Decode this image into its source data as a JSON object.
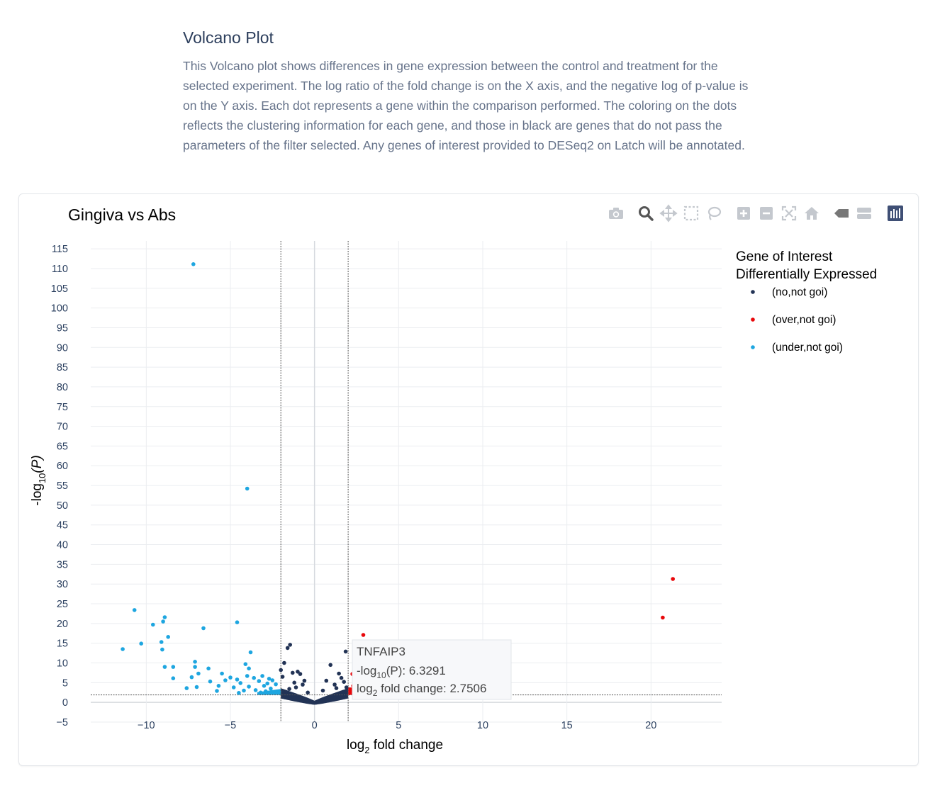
{
  "intro": {
    "title": "Volcano Plot",
    "description": "This Volcano plot shows differences in gene expression between the control and treatment for the selected experiment. The log ratio of the fold change is on the X axis, and the negative log of p-value is on the Y axis. Each dot represents a gene within the comparison performed. The coloring on the dots reflects the clustering information for each gene, and those in black are genes that do not pass the parameters of the filter selected. Any genes of interest provided to DESeq2 on Latch will be annotated."
  },
  "modebar": [
    {
      "name": "camera-icon"
    },
    {
      "name": "zoom-icon"
    },
    {
      "name": "pan-icon"
    },
    {
      "name": "box-select-icon"
    },
    {
      "name": "lasso-select-icon"
    },
    {
      "name": "zoom-in-icon"
    },
    {
      "name": "zoom-out-icon"
    },
    {
      "name": "autoscale-icon"
    },
    {
      "name": "reset-axes-icon"
    },
    {
      "name": "spike-lines-icon"
    },
    {
      "name": "compare-hover-icon"
    },
    {
      "name": "plotly-logo-icon"
    }
  ],
  "chart_data": {
    "type": "scatter",
    "title": "Gingiva vs Abs",
    "xlabel_main": "log",
    "xlabel_sub": "2",
    "xlabel_rest": " fold change",
    "ylabel_main": "-log",
    "ylabel_sub": "10",
    "ylabel_rest": "(P)",
    "xlim": [
      -13.3,
      24.2
    ],
    "ylim": [
      -5,
      117
    ],
    "xticks": [
      -10,
      -5,
      0,
      5,
      10,
      15,
      20
    ],
    "xtick_labels": [
      "−10",
      "−5",
      "0",
      "5",
      "10",
      "15",
      "20"
    ],
    "yticks": [
      -5,
      0,
      5,
      10,
      15,
      20,
      25,
      30,
      35,
      40,
      45,
      50,
      55,
      60,
      65,
      70,
      75,
      80,
      85,
      90,
      95,
      100,
      105,
      110,
      115
    ],
    "ytick_labels": [
      "−5",
      "0",
      "5",
      "10",
      "15",
      "20",
      "25",
      "30",
      "35",
      "40",
      "45",
      "50",
      "55",
      "60",
      "65",
      "70",
      "75",
      "80",
      "85",
      "90",
      "95",
      "100",
      "105",
      "110",
      "115"
    ],
    "fc_threshold": 2,
    "p_threshold": 1.9,
    "grid": true,
    "legend": {
      "placement": "right",
      "title_line1": "Gene of Interest",
      "title_line2": "Differentially Expressed"
    },
    "series": [
      {
        "name": "(no,not goi)",
        "color": "#223355",
        "points": [
          [
            -2.0,
            8.2
          ],
          [
            -1.9,
            6.5
          ],
          [
            -1.8,
            10.0
          ],
          [
            -1.6,
            13.8
          ],
          [
            -1.45,
            14.6
          ],
          [
            -1.3,
            7.5
          ],
          [
            -1.2,
            5.0
          ],
          [
            -1.0,
            7.8
          ],
          [
            -0.85,
            7.2
          ],
          [
            -0.7,
            4.5
          ],
          [
            -0.6,
            5.5
          ],
          [
            0.7,
            5.5
          ],
          [
            0.95,
            9.5
          ],
          [
            1.2,
            4.5
          ],
          [
            1.45,
            7.3
          ],
          [
            1.6,
            6.2
          ],
          [
            1.75,
            5.2
          ],
          [
            1.85,
            12.9
          ],
          [
            -1.5,
            3.4
          ],
          [
            -1.1,
            3.8
          ],
          [
            1.3,
            3.6
          ],
          [
            1.9,
            3.8
          ],
          [
            -0.4,
            2.5
          ],
          [
            0.5,
            3.0
          ]
        ]
      },
      {
        "name": "(over,not goi)",
        "color": "#e8070a",
        "points": [
          [
            21.3,
            31.3
          ],
          [
            20.7,
            21.5
          ],
          [
            2.9,
            17.1
          ],
          [
            5.7,
            14.3
          ],
          [
            2.35,
            10.2
          ],
          [
            2.45,
            8.8
          ],
          [
            2.95,
            8.2
          ],
          [
            2.6,
            6.8
          ],
          [
            2.75,
            6.33
          ],
          [
            3.1,
            6.0
          ],
          [
            2.25,
            7.2
          ],
          [
            2.5,
            5.0
          ],
          [
            2.85,
            5.2
          ],
          [
            3.2,
            4.8
          ],
          [
            2.3,
            4.2
          ]
        ]
      },
      {
        "name": "(under,not goi)",
        "color": "#1ea6e0",
        "points": [
          [
            -7.2,
            111.1
          ],
          [
            -4.0,
            54.2
          ],
          [
            -10.7,
            23.4
          ],
          [
            -8.9,
            21.6
          ],
          [
            -9.0,
            20.5
          ],
          [
            -9.6,
            19.7
          ],
          [
            -4.6,
            20.3
          ],
          [
            -6.6,
            18.8
          ],
          [
            -8.7,
            16.6
          ],
          [
            -11.4,
            13.5
          ],
          [
            -10.3,
            14.9
          ],
          [
            -9.1,
            15.3
          ],
          [
            -9.05,
            13.4
          ],
          [
            -3.8,
            12.7
          ],
          [
            -7.1,
            10.3
          ],
          [
            -4.1,
            9.7
          ],
          [
            -8.9,
            9.0
          ],
          [
            -8.4,
            9.0
          ],
          [
            -7.1,
            9.0
          ],
          [
            -6.3,
            8.6
          ],
          [
            -3.9,
            8.6
          ],
          [
            -6.9,
            7.3
          ],
          [
            -5.5,
            7.3
          ],
          [
            -7.3,
            6.4
          ],
          [
            -4.0,
            6.7
          ],
          [
            -3.1,
            6.7
          ],
          [
            -8.4,
            6.1
          ],
          [
            -6.2,
            5.3
          ],
          [
            -5.0,
            6.3
          ],
          [
            -4.6,
            5.8
          ],
          [
            -3.6,
            6.2
          ],
          [
            -2.7,
            6.0
          ],
          [
            -5.3,
            5.6
          ],
          [
            -4.4,
            4.9
          ],
          [
            -3.3,
            5.4
          ],
          [
            -2.5,
            5.6
          ],
          [
            -7.6,
            3.6
          ],
          [
            -7.0,
            3.9
          ],
          [
            -5.7,
            4.2
          ],
          [
            -4.8,
            3.8
          ],
          [
            -3.9,
            4.0
          ],
          [
            -3.0,
            4.2
          ],
          [
            -2.3,
            4.6
          ],
          [
            -5.8,
            2.9
          ],
          [
            -4.2,
            3.0
          ],
          [
            -3.5,
            3.1
          ],
          [
            -2.9,
            2.8
          ],
          [
            -2.6,
            3.5
          ],
          [
            -2.2,
            2.7
          ],
          [
            -3.2,
            2.5
          ],
          [
            -4.5,
            2.4
          ],
          [
            -2.8,
            4.8
          ]
        ]
      }
    ],
    "hover": {
      "gene": "TNFAIP3",
      "y_label_main": "-log",
      "y_label_sub": "10",
      "y_label_rest": "(P): 6.3291",
      "x_label_main": "log",
      "x_label_sub": "2",
      "x_label_rest": " fold change: 2.7506",
      "x": 2.7506,
      "y": 6.3291
    }
  }
}
